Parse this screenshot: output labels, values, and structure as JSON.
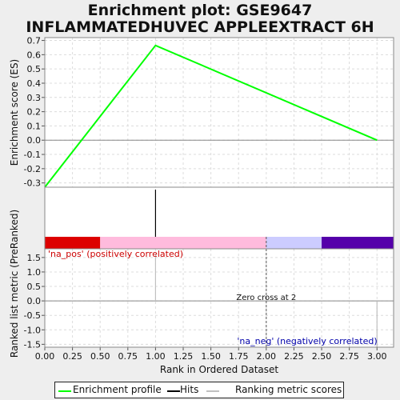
{
  "title_lines": [
    "Enrichment plot: GSE9647",
    "INFLAMMATEDHUVEC APPLEEXTRACT 6H"
  ],
  "colors": {
    "enrichment_line": "#00ff00",
    "hits": "#000000",
    "ranking": "#c0c0c0",
    "bar_red": "#dd0000",
    "bar_pink": "#ffbbdd",
    "bar_lavender": "#ccccff",
    "bar_purple": "#5500aa",
    "pos_label": "#cc0000",
    "neg_label": "#0000aa"
  },
  "legend": {
    "enrichment_profile": "Enrichment profile",
    "hits": "Hits",
    "ranking": "Ranking metric scores"
  },
  "chart_data": [
    {
      "type": "line",
      "panel": "enrichment",
      "ylabel": "Enrichment score (ES)",
      "ylim": [
        -0.33,
        0.72
      ],
      "yticks": [
        "0.7",
        "0.6",
        "0.5",
        "0.4",
        "0.3",
        "0.2",
        "0.1",
        "0.0",
        "-0.1",
        "-0.2",
        "-0.3"
      ],
      "ytick_values": [
        0.7,
        0.6,
        0.5,
        0.4,
        0.3,
        0.2,
        0.1,
        0.0,
        -0.1,
        -0.2,
        -0.3
      ],
      "xlim": [
        0,
        3.15
      ],
      "grid": true,
      "series": [
        {
          "name": "Enrichment profile",
          "x": [
            0,
            1,
            3
          ],
          "y": [
            -0.33,
            0.665,
            0.0
          ]
        }
      ]
    },
    {
      "type": "bar",
      "panel": "hits",
      "hit_positions": [
        1
      ]
    },
    {
      "type": "heatmap",
      "panel": "ranking color bar",
      "segments": [
        {
          "from": 0,
          "to": 0.5,
          "color": "bar_red"
        },
        {
          "from": 0.5,
          "to": 2.0,
          "color": "bar_pink"
        },
        {
          "from": 2.0,
          "to": 2.5,
          "color": "bar_lavender"
        },
        {
          "from": 2.5,
          "to": 3.15,
          "color": "bar_purple"
        }
      ]
    },
    {
      "type": "bar",
      "panel": "ranking",
      "ylabel": "Ranked list metric (PreRanked)",
      "xlabel": "Rank in Ordered Dataset",
      "ylim": [
        -1.6,
        1.8
      ],
      "yticks": [
        "1.5",
        "1.0",
        "0.5",
        "0.0",
        "-0.5",
        "-1.0",
        "-1.5"
      ],
      "ytick_values": [
        1.5,
        1.0,
        0.5,
        0.0,
        -0.5,
        -1.0,
        -1.5
      ],
      "xticks": [
        "0.00",
        "0.25",
        "0.50",
        "0.75",
        "1.00",
        "1.25",
        "1.50",
        "1.75",
        "2.00",
        "2.25",
        "2.50",
        "2.75",
        "3.00"
      ],
      "xtick_values": [
        0,
        0.25,
        0.5,
        0.75,
        1.0,
        1.25,
        1.5,
        1.75,
        2.0,
        2.25,
        2.5,
        2.75,
        3.0
      ],
      "xlim": [
        0,
        3.15
      ],
      "grid": true,
      "values": [
        {
          "x": 1,
          "y": 1.6
        },
        {
          "x": 3,
          "y": -1.6
        }
      ],
      "zero_cross": 2,
      "annotations": {
        "pos": "'na_pos' (positively correlated)",
        "neg": "'na_neg' (negatively correlated)",
        "zero_cross": "Zero cross at 2"
      }
    }
  ]
}
